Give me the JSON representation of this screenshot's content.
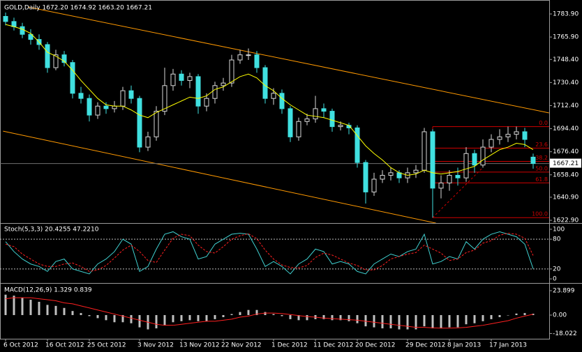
{
  "chart_data": [
    {
      "type": "candlestick",
      "title": "GOLD,Daily  1672.20 1674.92 1663.20 1667.21",
      "categories": [
        "6 Oct 2012",
        null,
        null,
        null,
        null,
        "16 Oct 2012",
        null,
        null,
        null,
        null,
        "25 Oct 2012",
        null,
        null,
        null,
        null,
        null,
        "3 Nov 2012",
        null,
        null,
        null,
        null,
        "13 Nov 2012",
        null,
        null,
        null,
        null,
        "22 Nov 2012",
        null,
        null,
        null,
        null,
        null,
        "1 Dec 2012",
        null,
        null,
        null,
        null,
        "11 Dec 2012",
        null,
        null,
        null,
        null,
        "20 Dec 2012",
        null,
        null,
        null,
        null,
        null,
        "29 Dec 2012",
        null,
        null,
        null,
        null,
        "8 Jan 2013",
        null,
        null,
        null,
        null,
        "17 Jan 2013",
        null,
        null,
        null,
        null,
        null
      ],
      "open": [
        1782,
        1778,
        1774,
        1768,
        1764,
        1760,
        1742,
        1752,
        1746,
        1722,
        1718,
        1705,
        1712,
        1710,
        1712,
        1724,
        1718,
        1680,
        1688,
        1708,
        1728,
        1737,
        1732,
        1735,
        1712,
        1718,
        1728,
        1730,
        1748,
        1752,
        1752,
        1742,
        1718,
        1722,
        1710,
        1688,
        1700,
        1702,
        1710,
        1708,
        1696,
        1697,
        1695,
        1668,
        1645,
        1655,
        1658,
        1660,
        1656,
        1660,
        1662,
        1692,
        1648,
        1652,
        1658,
        1656,
        1675,
        1666,
        1680,
        1686,
        1688,
        1690,
        1692,
        1672.2
      ],
      "high": [
        1785,
        1781,
        1777,
        1772,
        1768,
        1762,
        1756,
        1755,
        1748,
        1727,
        1721,
        1715,
        1715,
        1716,
        1727,
        1728,
        1720,
        1692,
        1712,
        1742,
        1741,
        1740,
        1738,
        1737,
        1722,
        1731,
        1734,
        1752,
        1756,
        1757,
        1755,
        1744,
        1726,
        1725,
        1712,
        1703,
        1706,
        1720,
        1714,
        1710,
        1700,
        1699,
        1697,
        1670,
        1660,
        1662,
        1664,
        1662,
        1664,
        1666,
        1695,
        1694,
        1658,
        1662,
        1664,
        1680,
        1678,
        1686,
        1690,
        1694,
        1696,
        1696,
        1695,
        1674.92
      ],
      "low": [
        1775,
        1771,
        1765,
        1760,
        1756,
        1738,
        1740,
        1743,
        1718,
        1714,
        1700,
        1702,
        1706,
        1707,
        1709,
        1714,
        1676,
        1677,
        1685,
        1705,
        1724,
        1728,
        1726,
        1706,
        1708,
        1714,
        1724,
        1727,
        1745,
        1748,
        1738,
        1714,
        1713,
        1706,
        1684,
        1685,
        1697,
        1699,
        1703,
        1692,
        1693,
        1690,
        1664,
        1636,
        1642,
        1652,
        1654,
        1652,
        1652,
        1656,
        1660,
        1625,
        1640,
        1646,
        1650,
        1653,
        1660,
        1664,
        1676,
        1682,
        1684,
        1686,
        1680,
        1663.2
      ],
      "close": [
        1778,
        1774,
        1768,
        1764,
        1760,
        1742,
        1752,
        1746,
        1722,
        1718,
        1705,
        1712,
        1710,
        1712,
        1724,
        1718,
        1680,
        1688,
        1708,
        1728,
        1737,
        1732,
        1735,
        1712,
        1718,
        1728,
        1730,
        1748,
        1752,
        1752,
        1742,
        1718,
        1722,
        1710,
        1688,
        1700,
        1702,
        1710,
        1708,
        1696,
        1697,
        1695,
        1668,
        1645,
        1655,
        1658,
        1660,
        1656,
        1660,
        1662,
        1692,
        1648,
        1652,
        1658,
        1656,
        1675,
        1666,
        1680,
        1686,
        1688,
        1690,
        1692,
        1686,
        1667.21
      ],
      "ma_values": [
        1775.7,
        1774,
        1772,
        1768.7,
        1762,
        1754,
        1751,
        1747,
        1740,
        1732,
        1725,
        1718,
        1713,
        1712,
        1712,
        1709,
        1705,
        1703,
        1707,
        1710,
        1713,
        1716,
        1719,
        1718,
        1720,
        1725,
        1727,
        1731,
        1735,
        1737,
        1734,
        1728,
        1724,
        1718,
        1713,
        1709,
        1705,
        1704,
        1703,
        1701,
        1699,
        1697,
        1689,
        1681,
        1675,
        1670,
        1664,
        1660,
        1658,
        1659,
        1662,
        1660,
        1659,
        1660,
        1661,
        1663,
        1665,
        1670,
        1674,
        1678,
        1680,
        1683,
        1682,
        1678
      ],
      "ma_color": "#ffff00",
      "bull_color": "#d8d8d8",
      "bear_color": "#40e0e0",
      "ylim": [
        1621.3,
        1793.7
      ],
      "yticks": [
        {
          "value": 1783.9,
          "label": "1783.90"
        },
        {
          "value": 1765.9,
          "label": "1765.90"
        },
        {
          "value": 1748.4,
          "label": "1748.40"
        },
        {
          "value": 1730.4,
          "label": "1730.40"
        },
        {
          "value": 1712.4,
          "label": "1712.40"
        },
        {
          "value": 1694.4,
          "label": "1694.40"
        },
        {
          "value": 1676.4,
          "label": "1676.40"
        },
        {
          "value": 1658.4,
          "label": "1658.40"
        },
        {
          "value": 1640.9,
          "label": "1640.90"
        },
        {
          "value": 1622.9,
          "label": "1622.90"
        }
      ],
      "trendline_color": "#ff9900",
      "trendlines": [
        {
          "points": [
            [
              2.7,
              1789.3
            ],
            [
              64.9,
              1706.7
            ]
          ]
        },
        {
          "points": [
            [
              -0.3,
              1692.5
            ],
            [
              51.4,
              1620.7
            ]
          ]
        }
      ],
      "fibo": {
        "start": 51,
        "high": 1696,
        "low": 1625,
        "color": "#d00000",
        "levels": [
          {
            "value": 0,
            "label": "0.0"
          },
          {
            "value": 23.6,
            "label": "23.6"
          },
          {
            "value": 38.2,
            "label": "38.2"
          },
          {
            "value": 50,
            "label": "50.0"
          },
          {
            "value": 61.8,
            "label": "61.8"
          },
          {
            "value": 100,
            "label": "100.0"
          }
        ]
      }
    },
    {
      "type": "line",
      "title": "Stoch(5,3,3) 20.4255 47.2210",
      "series": [
        {
          "color": "#40d0d0",
          "values": [
            75,
            55,
            40,
            30,
            25,
            15,
            35,
            40,
            20,
            15,
            10,
            30,
            40,
            55,
            80,
            70,
            15,
            25,
            60,
            90,
            95,
            85,
            80,
            40,
            45,
            70,
            80,
            90,
            92,
            90,
            60,
            25,
            35,
            25,
            10,
            30,
            40,
            60,
            55,
            30,
            35,
            30,
            15,
            10,
            30,
            40,
            50,
            45,
            55,
            60,
            90,
            30,
            35,
            45,
            40,
            75,
            60,
            80,
            90,
            95,
            90,
            85,
            70,
            20.4255
          ]
        },
        {
          "color": "#ff2020",
          "dashed": true,
          "values": [
            70,
            65,
            50,
            40,
            30,
            25,
            25,
            30,
            32,
            25,
            15,
            18,
            27,
            42,
            58,
            68,
            55,
            37,
            33,
            58,
            82,
            90,
            87,
            68,
            55,
            52,
            65,
            80,
            87,
            91,
            81,
            58,
            40,
            28,
            23,
            22,
            27,
            43,
            52,
            48,
            40,
            32,
            27,
            18,
            18,
            27,
            40,
            45,
            50,
            53,
            68,
            60,
            52,
            37,
            40,
            53,
            58,
            72,
            77,
            88,
            92,
            90,
            82,
            47.221
          ]
        }
      ],
      "levels": [
        80,
        20
      ],
      "ylim": [
        -6.9,
        108.3
      ],
      "yticks": [
        100,
        80,
        20,
        0
      ]
    },
    {
      "type": "bar",
      "title": "MACD(12,26,9) 1.329 0.839",
      "color": "#c0c0c0",
      "values": [
        20,
        19,
        17,
        15,
        13,
        10,
        9,
        7,
        4,
        2,
        -1,
        -3,
        -5,
        -7,
        -7,
        -8,
        -12,
        -14,
        -13,
        -10,
        -7,
        -6,
        -5,
        -6,
        -6,
        -4,
        -2,
        1,
        3,
        5,
        5,
        3,
        1,
        -1,
        -4,
        -5,
        -5,
        -4,
        -4,
        -5,
        -5,
        -6,
        -8,
        -11,
        -12,
        -13,
        -13,
        -14,
        -14,
        -14,
        -11,
        -13,
        -13,
        -12,
        -12,
        -9,
        -8,
        -6,
        -4,
        -2,
        0,
        1.5,
        2,
        1.329
      ],
      "signal": {
        "color": "#ff2020",
        "values": [
          16,
          17,
          17,
          17,
          16,
          15,
          14,
          12,
          11,
          9,
          7,
          5,
          3,
          1,
          -1,
          -3,
          -5,
          -7,
          -9,
          -10,
          -10,
          -9,
          -8,
          -7,
          -6,
          -6,
          -5,
          -4,
          -2,
          -1,
          1,
          2,
          2,
          1.5,
          0.5,
          -0.5,
          -1.5,
          -2,
          -3,
          -3.5,
          -4,
          -4.5,
          -5,
          -6,
          -7,
          -8,
          -9,
          -10,
          -11,
          -12,
          -12,
          -12.5,
          -12.8,
          -12.8,
          -12.5,
          -12,
          -11,
          -10,
          -8.5,
          -7,
          -5.5,
          -3,
          -1,
          0.839
        ]
      },
      "ylim": [
        -22.5,
        30.05
      ],
      "yticks": [
        23.899,
        {
          "value": 0,
          "label": "0.00"
        },
        -18.022
      ]
    }
  ]
}
